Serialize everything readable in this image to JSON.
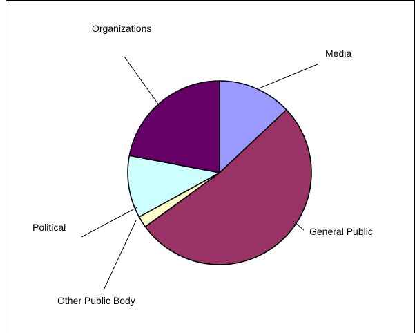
{
  "chart_data": {
    "type": "pie",
    "title": "",
    "slices": [
      {
        "label": "Media",
        "value": 13,
        "color": "#9999ff"
      },
      {
        "label": "General Public",
        "value": 52,
        "color": "#993366"
      },
      {
        "label": "Other Public Body",
        "value": 2,
        "color": "#ffffcc"
      },
      {
        "label": "Political",
        "value": 11,
        "color": "#ccffff"
      },
      {
        "label": "Organizations",
        "value": 22,
        "color": "#660066"
      }
    ],
    "legend": "none",
    "data_labels": "category-name-with-leader-lines"
  }
}
